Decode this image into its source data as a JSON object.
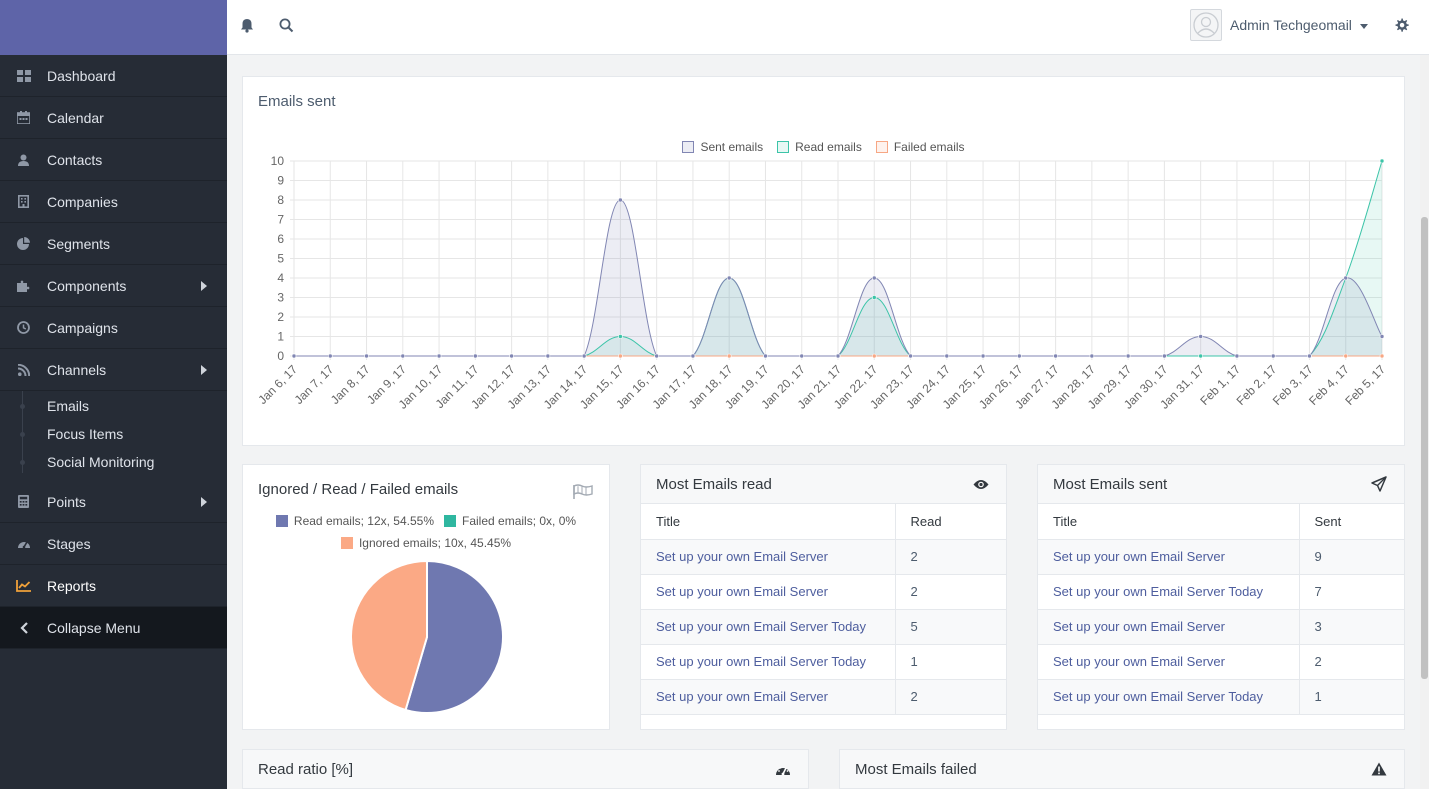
{
  "sidebar": {
    "items": [
      {
        "label": "Dashboard",
        "icon": "dashboard-icon"
      },
      {
        "label": "Calendar",
        "icon": "calendar-icon"
      },
      {
        "label": "Contacts",
        "icon": "user-icon"
      },
      {
        "label": "Companies",
        "icon": "building-icon"
      },
      {
        "label": "Segments",
        "icon": "pie-chart-icon"
      },
      {
        "label": "Components",
        "icon": "puzzle-icon"
      },
      {
        "label": "Campaigns",
        "icon": "clock-icon"
      },
      {
        "label": "Channels",
        "icon": "rss-icon"
      }
    ],
    "sub_items": [
      {
        "label": "Emails"
      },
      {
        "label": "Focus Items"
      },
      {
        "label": "Social Monitoring"
      }
    ],
    "items_after": [
      {
        "label": "Points",
        "icon": "calculator-icon"
      },
      {
        "label": "Stages",
        "icon": "tachometer-icon"
      },
      {
        "label": "Reports",
        "icon": "line-chart-icon"
      }
    ],
    "collapse_label": "Collapse Menu"
  },
  "topbar": {
    "user_name": "Admin Techgeomail",
    "icons": [
      "bell-icon",
      "search-icon",
      "avatar-icon",
      "gear-icon"
    ]
  },
  "emails_sent": {
    "title": "Emails sent",
    "legend": [
      "Sent emails",
      "Read emails",
      "Failed emails"
    ],
    "colors": {
      "sent": "#8186b3",
      "read": "#3cc4a8",
      "failed": "#f7a784"
    }
  },
  "chart_data": [
    {
      "type": "line",
      "title": "Emails sent",
      "x": [
        "Jan 6, 17",
        "Jan 7, 17",
        "Jan 8, 17",
        "Jan 9, 17",
        "Jan 10, 17",
        "Jan 11, 17",
        "Jan 12, 17",
        "Jan 13, 17",
        "Jan 14, 17",
        "Jan 15, 17",
        "Jan 16, 17",
        "Jan 17, 17",
        "Jan 18, 17",
        "Jan 19, 17",
        "Jan 20, 17",
        "Jan 21, 17",
        "Jan 22, 17",
        "Jan 23, 17",
        "Jan 24, 17",
        "Jan 25, 17",
        "Jan 26, 17",
        "Jan 27, 17",
        "Jan 28, 17",
        "Jan 29, 17",
        "Jan 30, 17",
        "Jan 31, 17",
        "Feb 1, 17",
        "Feb 2, 17",
        "Feb 3, 17",
        "Feb 4, 17",
        "Feb 5, 17"
      ],
      "series": [
        {
          "name": "Sent emails",
          "values": [
            0,
            0,
            0,
            0,
            0,
            0,
            0,
            0,
            0,
            8,
            0,
            0,
            4,
            0,
            0,
            0,
            4,
            0,
            0,
            0,
            0,
            0,
            0,
            0,
            0,
            1,
            0,
            0,
            0,
            4,
            1
          ]
        },
        {
          "name": "Read emails",
          "values": [
            0,
            0,
            0,
            0,
            0,
            0,
            0,
            0,
            0,
            1,
            0,
            0,
            4,
            0,
            0,
            0,
            3,
            0,
            0,
            0,
            0,
            0,
            0,
            0,
            0,
            0,
            0,
            0,
            0,
            4,
            10
          ]
        },
        {
          "name": "Failed emails",
          "values": [
            0,
            0,
            0,
            0,
            0,
            0,
            0,
            0,
            0,
            0,
            0,
            0,
            0,
            0,
            0,
            0,
            0,
            0,
            0,
            0,
            0,
            0,
            0,
            0,
            0,
            0,
            0,
            0,
            0,
            0,
            0
          ]
        }
      ],
      "yticks": [
        "0",
        "1",
        "2",
        "3",
        "4",
        "5",
        "6",
        "7",
        "8",
        "9",
        "10"
      ],
      "ylim": [
        0,
        10
      ],
      "grid": true,
      "legend": "top"
    },
    {
      "type": "pie",
      "title": "Ignored / Read / Failed emails",
      "labels": [
        "Read emails; 12x, 54.55%",
        "Failed emails; 0x, 0%",
        "Ignored emails; 10x, 45.45%"
      ],
      "values": [
        12,
        0,
        10
      ],
      "colors": [
        "#6f78b0",
        "#2fb7a0",
        "#fba985"
      ],
      "legend": "top"
    }
  ],
  "pie_panel": {
    "title": "Ignored / Read / Failed emails"
  },
  "most_read": {
    "title": "Most Emails read",
    "col_title": "Title",
    "col_value": "Read",
    "rows": [
      {
        "title": "Set up your own Email Server",
        "value": "2"
      },
      {
        "title": "Set up your own Email Server",
        "value": "2"
      },
      {
        "title": "Set up your own Email Server Today",
        "value": "5"
      },
      {
        "title": "Set up your own Email Server Today",
        "value": "1"
      },
      {
        "title": "Set up your own Email Server",
        "value": "2"
      }
    ]
  },
  "most_sent": {
    "title": "Most Emails sent",
    "col_title": "Title",
    "col_value": "Sent",
    "rows": [
      {
        "title": "Set up your own Email Server",
        "value": "9"
      },
      {
        "title": "Set up your own Email Server Today",
        "value": "7"
      },
      {
        "title": "Set up your own Email Server",
        "value": "3"
      },
      {
        "title": "Set up your own Email Server",
        "value": "2"
      },
      {
        "title": "Set up your own Email Server Today",
        "value": "1"
      }
    ]
  },
  "read_ratio": {
    "title": "Read ratio [%]"
  },
  "most_failed": {
    "title": "Most Emails failed"
  }
}
